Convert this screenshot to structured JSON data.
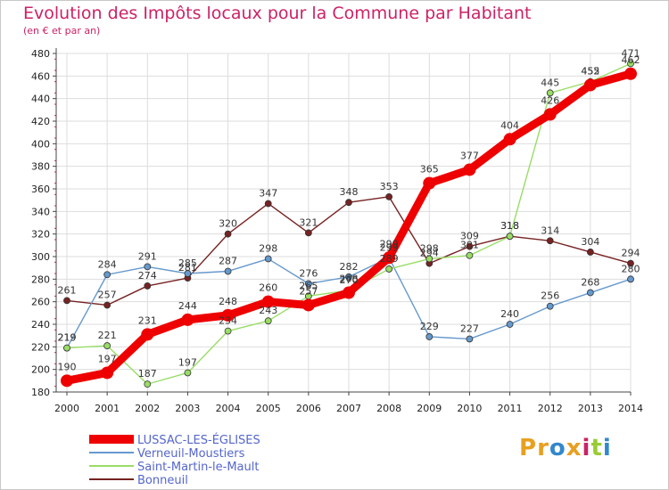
{
  "title": "Evolution des Impôts locaux pour la Commune par Habitant",
  "subtitle": "(en € et par an)",
  "logo": "Proxiti",
  "colors": {
    "title": "#cc2266",
    "grid": "#dddddd",
    "axis": "#444444"
  },
  "chart_data": {
    "type": "line",
    "title": "Evolution des Impôts locaux pour la Commune par Habitant",
    "subtitle": "(en € et par an)",
    "xlabel": "",
    "ylabel": "",
    "x": [
      2000,
      2001,
      2002,
      2003,
      2004,
      2005,
      2006,
      2007,
      2008,
      2009,
      2010,
      2011,
      2012,
      2013,
      2014
    ],
    "ylim": [
      180,
      480
    ],
    "yticks": [
      180,
      200,
      220,
      240,
      260,
      280,
      300,
      320,
      340,
      360,
      380,
      400,
      420,
      440,
      460,
      480
    ],
    "grid": true,
    "legend": "bottom-left",
    "series": [
      {
        "name": "LUSSAC-LES-ÉGLISES",
        "color": "#ee0000",
        "values": [
          190,
          197,
          231,
          244,
          248,
          260,
          257,
          268,
          299,
          365,
          377,
          404,
          426,
          452,
          462
        ]
      },
      {
        "name": "Verneuil-Moustiers",
        "color": "#6699cc",
        "values": [
          219,
          284,
          291,
          285,
          287,
          298,
          276,
          282,
          299,
          229,
          227,
          240,
          256,
          268,
          280
        ]
      },
      {
        "name": "Saint-Martin-le-Mault",
        "color": "#99dd66",
        "values": [
          219,
          221,
          187,
          197,
          234,
          243,
          265,
          270,
          289,
          298,
          301,
          318,
          445,
          455,
          471
        ]
      },
      {
        "name": "Bonneuil",
        "color": "#772222",
        "values": [
          261,
          257,
          274,
          281,
          320,
          347,
          321,
          348,
          353,
          294,
          309,
          318,
          314,
          304,
          294
        ]
      }
    ]
  }
}
